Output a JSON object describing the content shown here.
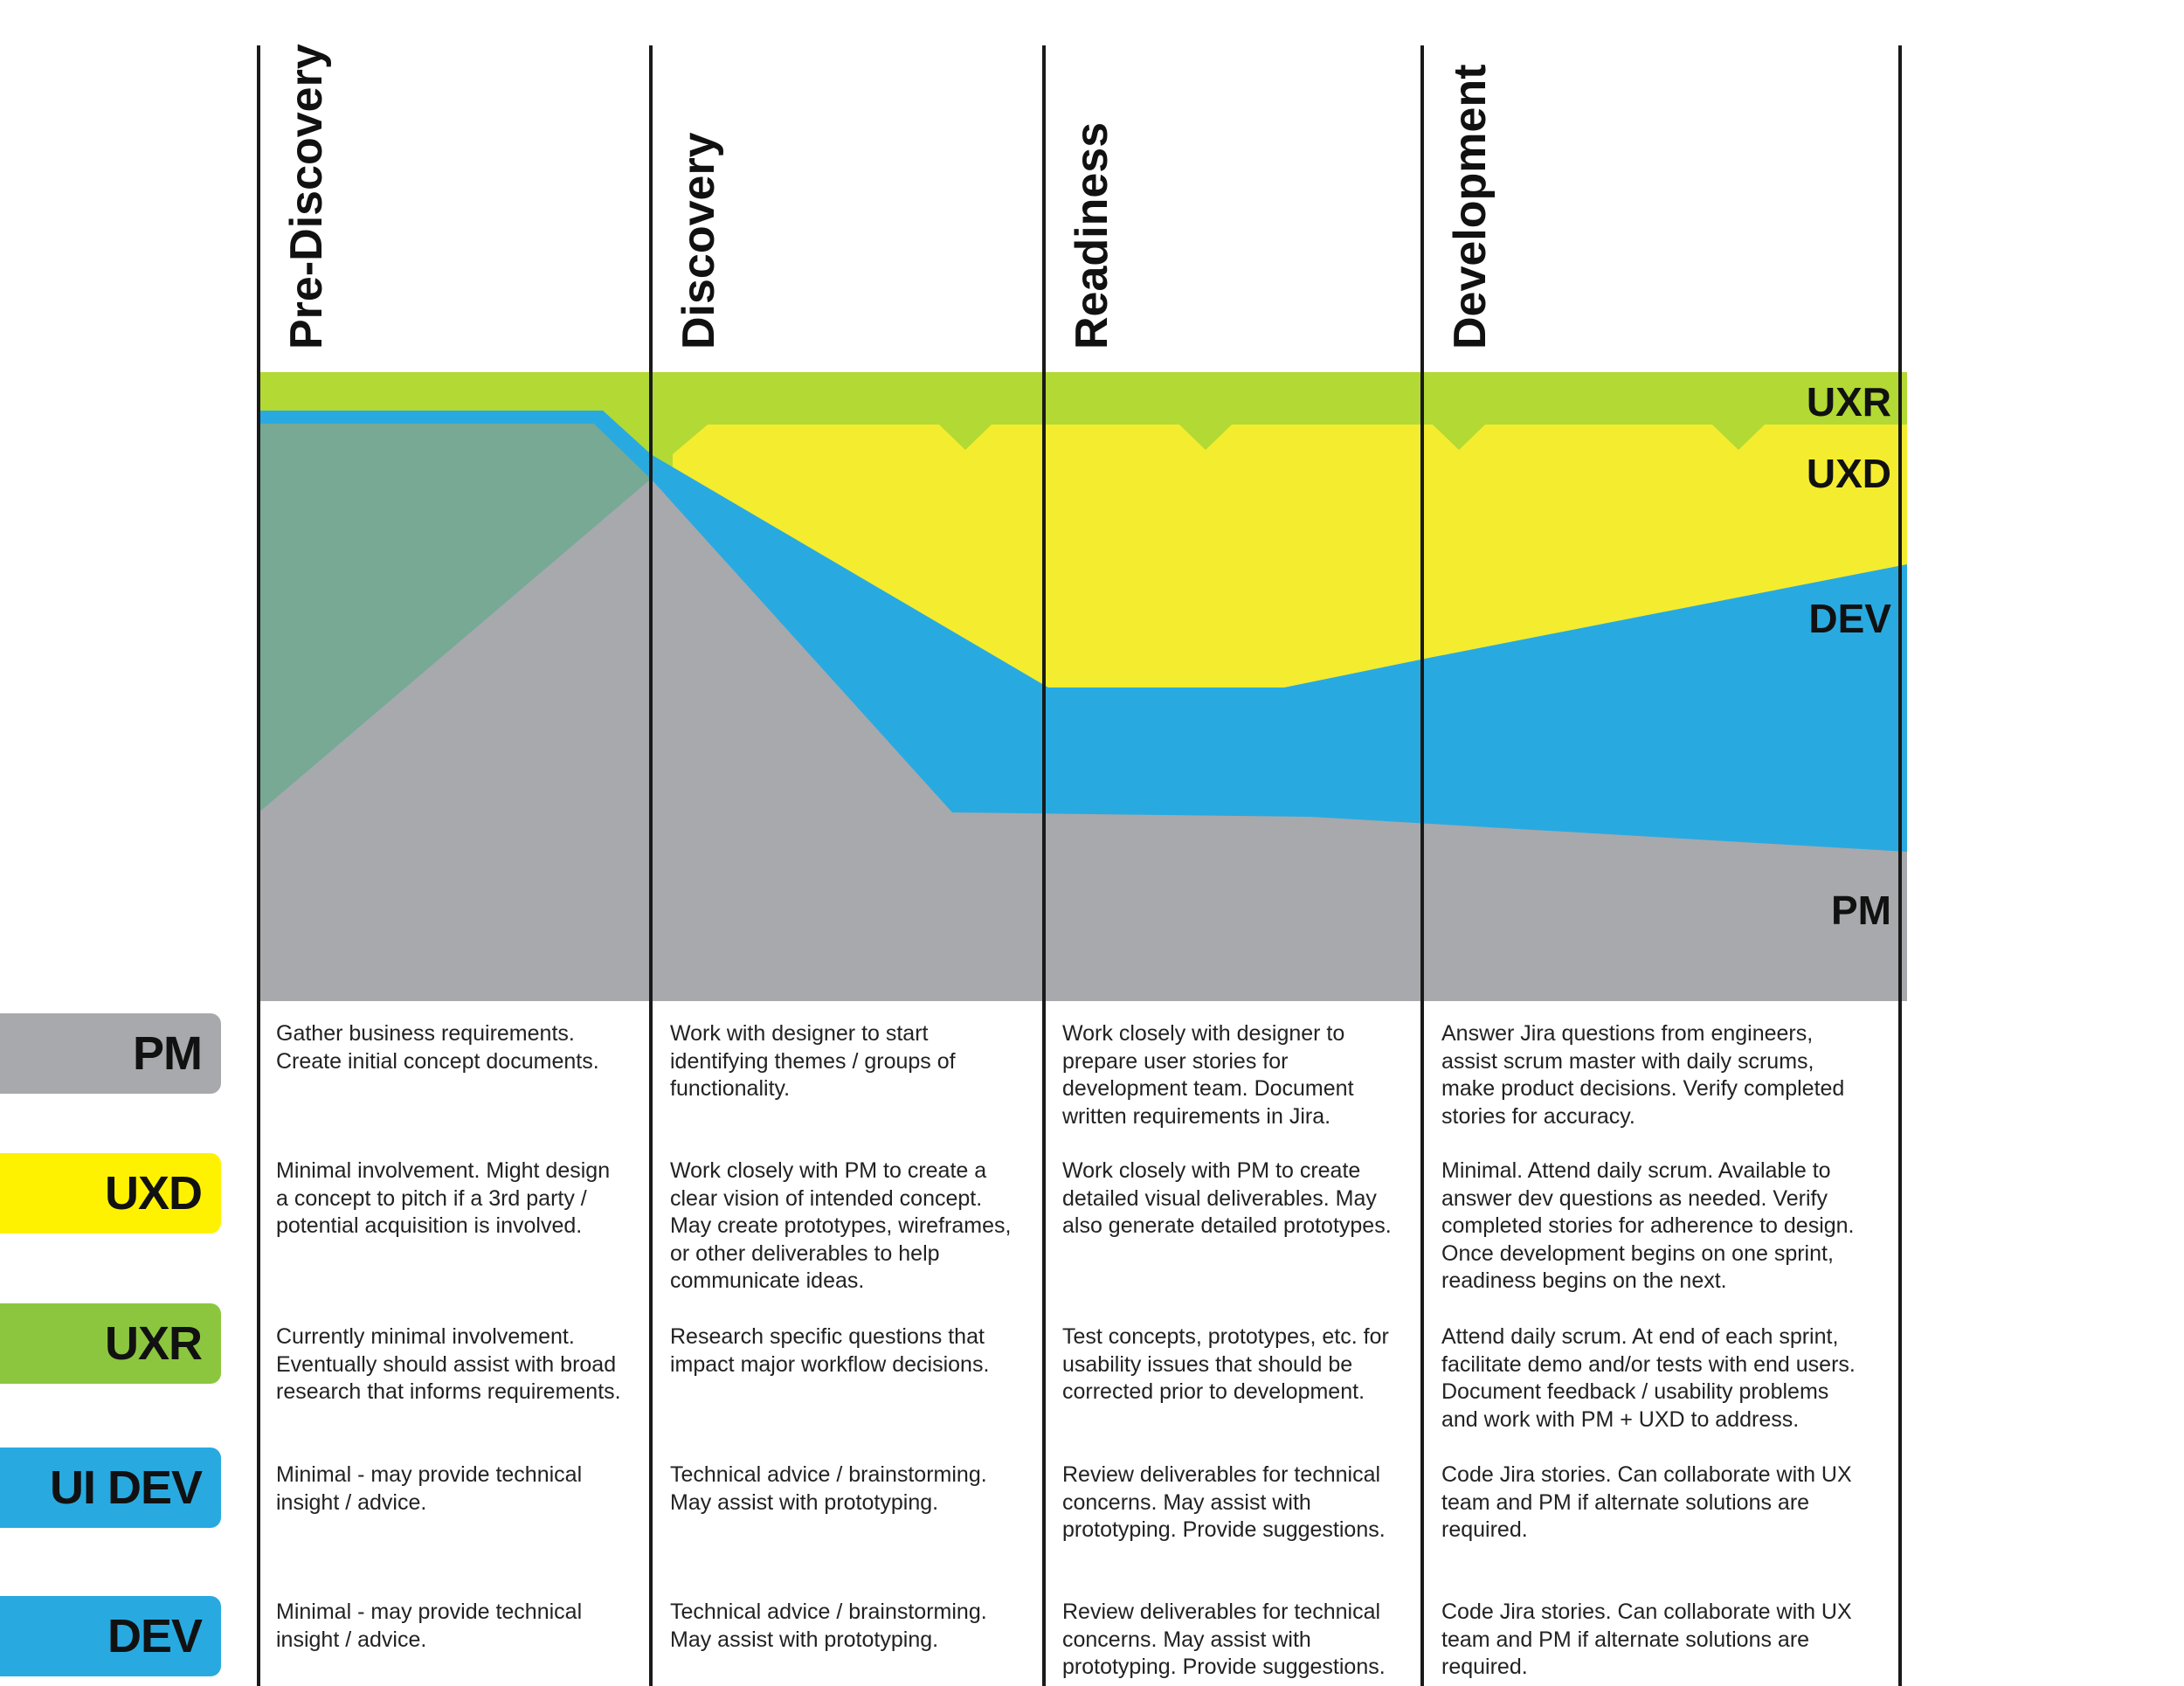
{
  "phases": [
    "Pre-Discovery",
    "Discovery",
    "Readiness",
    "Development"
  ],
  "band_labels": {
    "uxr": "UXR",
    "uxd": "UXD",
    "dev": "DEV",
    "pm": "PM"
  },
  "colors": {
    "pm": "#a7a9ac",
    "uxd": "#f4ec2f",
    "uxr": "#b2d934",
    "dev": "#28aae1",
    "overlap": "#77a994",
    "badge_uxr": "#8cc63e",
    "badge_uxd": "#fff200"
  },
  "roles": [
    {
      "key": "pm",
      "label": "PM",
      "cells": [
        "Gather business requirements.\nCreate initial concept documents.",
        "Work with designer to start\nidentifying themes / groups of\nfunctionality.",
        "Work closely with designer to\nprepare user stories for\ndevelopment team. Document\nwritten requirements in Jira.",
        "Answer Jira questions from engineers,\nassist scrum master with daily scrums,\nmake product decisions. Verify completed\nstories for accuracy."
      ]
    },
    {
      "key": "uxd",
      "label": "UXD",
      "cells": [
        "Minimal involvement. Might design\na concept to pitch if a 3rd party /\npotential acquisition is involved.",
        "Work closely with PM to create a\nclear vision of intended concept.\nMay create prototypes, wireframes,\nor other deliverables to help\ncommunicate ideas.",
        "Work closely with PM to create\ndetailed visual deliverables. May\nalso generate detailed prototypes.",
        "Minimal. Attend daily scrum. Available to\nanswer dev questions as needed. Verify\ncompleted stories for adherence to design.\nOnce development begins on one sprint,\nreadiness begins on the next."
      ]
    },
    {
      "key": "uxr",
      "label": "UXR",
      "cells": [
        "Currently minimal involvement.\nEventually should assist with broad\nresearch that informs requirements.",
        "Research specific questions that\nimpact major workflow decisions.",
        "Test concepts, prototypes, etc. for\nusability issues that should be\ncorrected prior to development.",
        "Attend daily scrum. At end of each sprint,\nfacilitate demo and/or tests with end users.\nDocument feedback / usability problems\nand work with PM + UXD to address."
      ]
    },
    {
      "key": "uidev",
      "label": "UI DEV",
      "cells": [
        "Minimal - may provide technical\ninsight / advice.",
        "Technical advice / brainstorming.\nMay assist with prototyping.",
        "Review deliverables for technical\nconcerns. May assist with\nprototyping. Provide suggestions.",
        "Code Jira stories. Can collaborate with UX\nteam and PM if alternate solutions are\nrequired."
      ]
    },
    {
      "key": "dev",
      "label": "DEV",
      "cells": [
        "Minimal - may provide technical\ninsight / advice.",
        "Technical advice / brainstorming.\nMay assist with prototyping.",
        "Review deliverables for technical\nconcerns. May assist with\nprototyping. Provide suggestions.",
        "Code Jira stories. Can collaborate with UX\nteam and PM if alternate solutions are\nrequired."
      ]
    }
  ]
}
